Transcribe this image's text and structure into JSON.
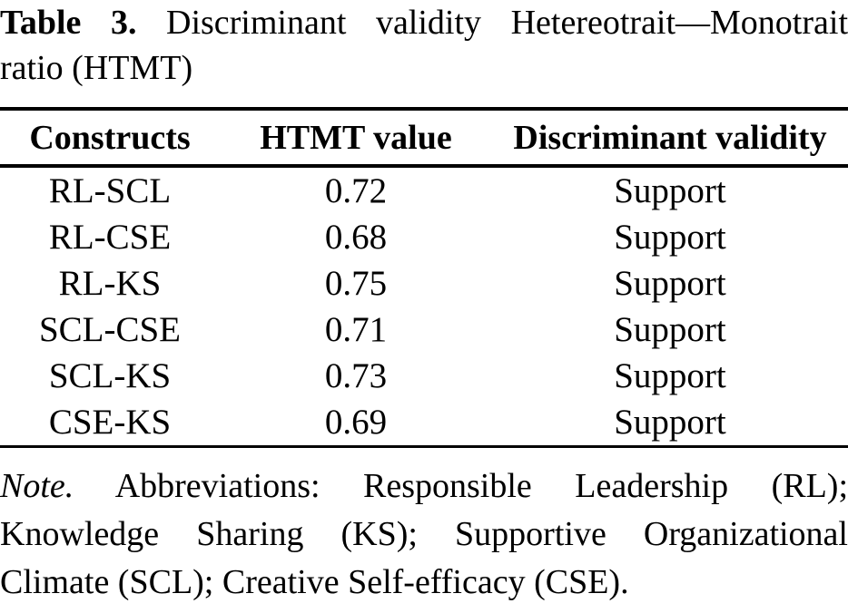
{
  "colors": {
    "background": "#ffffff",
    "text": "#000000",
    "rule": "#000000"
  },
  "title": {
    "label": "Table 3.",
    "line1_rest": "Discriminant validity Hetereotrait—Monotrait",
    "line2": "ratio (HTMT)"
  },
  "table": {
    "columns": [
      "Constructs",
      "HTMT value",
      "Discriminant validity"
    ],
    "rows": [
      {
        "pair": "RL-SCL",
        "value": "0.72",
        "validity": "Support"
      },
      {
        "pair": "RL-CSE",
        "value": "0.68",
        "validity": "Support"
      },
      {
        "pair": "RL-KS",
        "value": "0.75",
        "validity": "Support"
      },
      {
        "pair": "SCL-CSE",
        "value": "0.71",
        "validity": "Support"
      },
      {
        "pair": "SCL-KS",
        "value": "0.73",
        "validity": "Support"
      },
      {
        "pair": "CSE-KS",
        "value": "0.69",
        "validity": "Support"
      }
    ]
  },
  "note": {
    "label": "Note.",
    "line1_rest": "Abbreviations: Responsible Leadership (RL);",
    "line2": "Knowledge Sharing (KS); Supportive Organizational",
    "line3": "Climate (SCL); Creative Self-efficacy (CSE)."
  }
}
